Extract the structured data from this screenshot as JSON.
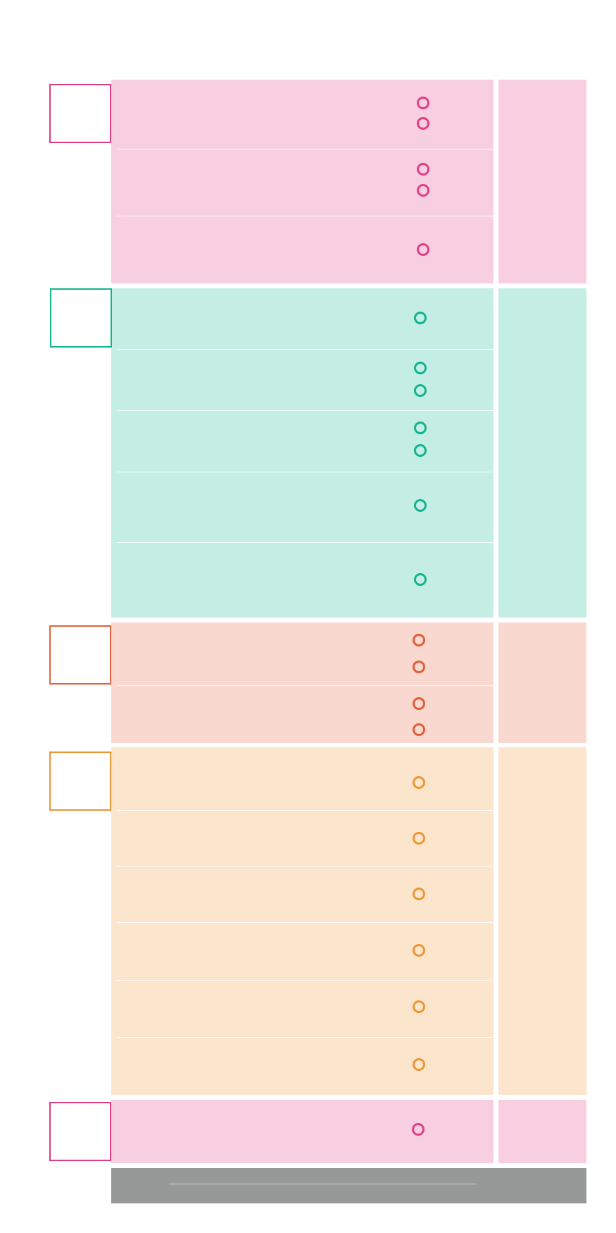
{
  "colors": {
    "pink": "#e23f86",
    "teal": "#12b38f",
    "coral": "#e35d38",
    "orange": "#ed9733",
    "footer": "#979898"
  },
  "sections": [
    {
      "name": "section-1",
      "color": "pink",
      "rows": [
        {
          "markers": 2
        },
        {
          "markers": 2
        },
        {
          "markers": 1
        }
      ]
    },
    {
      "name": "section-2",
      "color": "teal",
      "rows": [
        {
          "markers": 1
        },
        {
          "markers": 2
        },
        {
          "markers": 2
        },
        {
          "markers": 1
        },
        {
          "markers": 1
        }
      ]
    },
    {
      "name": "section-3",
      "color": "coral",
      "rows": [
        {
          "markers": 2
        },
        {
          "markers": 2
        }
      ]
    },
    {
      "name": "section-4",
      "color": "orange",
      "rows": [
        {
          "markers": 1
        },
        {
          "markers": 1
        },
        {
          "markers": 1
        },
        {
          "markers": 1
        },
        {
          "markers": 1
        },
        {
          "markers": 1
        }
      ]
    },
    {
      "name": "section-5",
      "color": "pink",
      "rows": [
        {
          "markers": 1
        }
      ]
    }
  ],
  "footer": {
    "label": ""
  }
}
